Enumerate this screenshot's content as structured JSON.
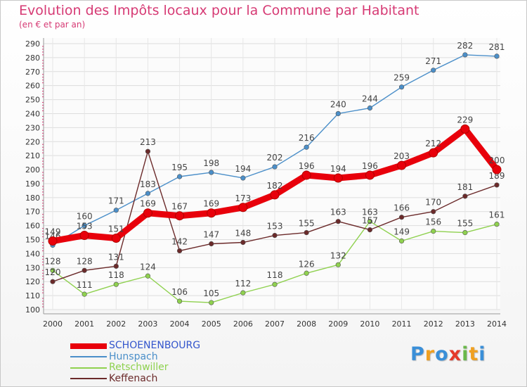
{
  "title": "Evolution des Impôts locaux pour la Commune par Habitant",
  "subtitle": "(en € et par an)",
  "logo": "Proxiti",
  "chart_data": {
    "type": "line",
    "title": "Evolution des Impôts locaux pour la Commune par Habitant",
    "subtitle": "(en € et par an)",
    "x": [
      2000,
      2001,
      2002,
      2003,
      2004,
      2005,
      2006,
      2007,
      2008,
      2009,
      2010,
      2011,
      2012,
      2013,
      2014
    ],
    "ylim": [
      100,
      290
    ],
    "yticks": [
      100,
      110,
      120,
      130,
      140,
      150,
      160,
      170,
      180,
      190,
      200,
      210,
      220,
      230,
      240,
      250,
      260,
      270,
      280,
      290
    ],
    "grid": true,
    "legend_position": "bottom-left",
    "series": [
      {
        "name": "SCHOENENBOURG",
        "color": "#e8000b",
        "values": [
          149,
          153,
          151,
          169,
          167,
          169,
          173,
          182,
          196,
          194,
          196,
          203,
          212,
          229,
          200
        ]
      },
      {
        "name": "Hunspach",
        "color": "#4b8fc9",
        "values": [
          146,
          160,
          171,
          183,
          195,
          198,
          194,
          202,
          216,
          240,
          244,
          259,
          271,
          282,
          281
        ]
      },
      {
        "name": "Retschwiller",
        "color": "#8fd14f",
        "values": [
          128,
          111,
          118,
          124,
          106,
          105,
          112,
          118,
          126,
          132,
          163,
          149,
          156,
          155,
          161
        ]
      },
      {
        "name": "Keffenach",
        "color": "#6b2a2a",
        "values": [
          120,
          128,
          131,
          213,
          142,
          147,
          148,
          153,
          155,
          163,
          157,
          166,
          170,
          181,
          189
        ]
      }
    ]
  }
}
